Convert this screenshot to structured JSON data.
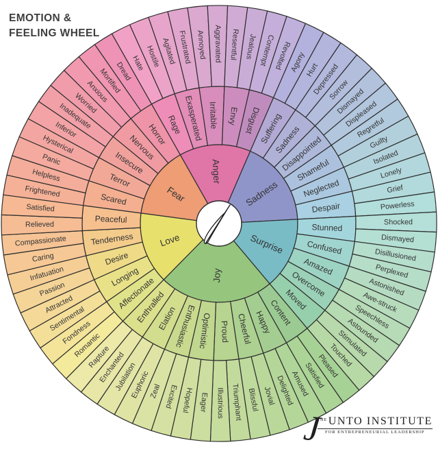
{
  "title": {
    "line1": "EMOTION &",
    "line2": "FEELING WHEEL"
  },
  "logo": {
    "the": "THE",
    "initial": "J",
    "name_rest": "UNTO INSTITUTE",
    "tagline": "FOR ENTREPRENEURIAL LEADERSHIP"
  },
  "center_icon": "quill-j-monogram",
  "colors": {
    "background": "#ffffff",
    "stroke": "#2e2e2e",
    "label": "#333333",
    "title_text": "#3e3e3e",
    "logo_text": "#1f1f1f",
    "center_fill": "#ffffff"
  },
  "wheel": {
    "start_angle_deg": -29.5,
    "segments": [
      {
        "label": "Anger",
        "color": "#e075a8",
        "middle": [
          {
            "label": "Rage",
            "color": "#ee8db7"
          },
          {
            "label": "Exasperated",
            "color": "#e38db9"
          },
          {
            "label": "Irritable",
            "color": "#d88dbc"
          },
          {
            "label": "Envy",
            "color": "#cc8dbe"
          },
          {
            "label": "Disgust",
            "color": "#c08cbe"
          }
        ],
        "outer": [
          {
            "label": "Hate",
            "color": "#f2a1c6"
          },
          {
            "label": "Hostile",
            "color": "#eca3c8"
          },
          {
            "label": "Agitated",
            "color": "#e7a5cb"
          },
          {
            "label": "Frustrated",
            "color": "#e1a6cd"
          },
          {
            "label": "Annoyed",
            "color": "#dba8d0"
          },
          {
            "label": "Aggravated",
            "color": "#d6aad2"
          },
          {
            "label": "Resentful",
            "color": "#d0acd5"
          },
          {
            "label": "Jealous",
            "color": "#caadd7"
          },
          {
            "label": "Contempt",
            "color": "#c5afda"
          },
          {
            "label": "Revolted",
            "color": "#bfb1dc"
          }
        ]
      },
      {
        "label": "Sadness",
        "color": "#9095c9",
        "middle": [
          {
            "label": "Suffering",
            "color": "#b2a9d4"
          },
          {
            "label": "Sadness",
            "color": "#b0b1d7"
          },
          {
            "label": "Disappointed",
            "color": "#aeb9da"
          },
          {
            "label": "Shameful",
            "color": "#acc1dd"
          },
          {
            "label": "Neglected",
            "color": "#abc8e0"
          },
          {
            "label": "Despair",
            "color": "#a9d0e3"
          }
        ],
        "outer": [
          {
            "label": "Agony",
            "color": "#b3b1dd"
          },
          {
            "label": "Hurt",
            "color": "#b3b5dd"
          },
          {
            "label": "Depressed",
            "color": "#b3b9dd"
          },
          {
            "label": "Sorrow",
            "color": "#b3bedd"
          },
          {
            "label": "Dismayed",
            "color": "#b2c2dd"
          },
          {
            "label": "Displeased",
            "color": "#b2c6dd"
          },
          {
            "label": "Regretful",
            "color": "#b2cadd"
          },
          {
            "label": "Guilty",
            "color": "#b2cfdc"
          },
          {
            "label": "Isolated",
            "color": "#b2d3dc"
          },
          {
            "label": "Lonely",
            "color": "#b2d7dc"
          },
          {
            "label": "Grief",
            "color": "#b2dadc"
          },
          {
            "label": "Powerless",
            "color": "#b2dedc"
          }
        ]
      },
      {
        "label": "Surprise",
        "color": "#79bcc6",
        "middle": [
          {
            "label": "Stunned",
            "color": "#a3d6dc"
          },
          {
            "label": "Confused",
            "color": "#a0d4cf"
          },
          {
            "label": "Amazed",
            "color": "#9dd3c3"
          },
          {
            "label": "Overcome",
            "color": "#9ad1b7"
          },
          {
            "label": "Moved",
            "color": "#96cfab"
          }
        ],
        "outer": [
          {
            "label": "Shocked",
            "color": "#b4e0d9"
          },
          {
            "label": "Dismayed",
            "color": "#b4dfd3"
          },
          {
            "label": "Disillusioned",
            "color": "#b5decd"
          },
          {
            "label": "Perplexed",
            "color": "#b5ddc8"
          },
          {
            "label": "Astonished",
            "color": "#b5dcc2"
          },
          {
            "label": "Awe-struck",
            "color": "#b6dcbc"
          },
          {
            "label": "Speechless",
            "color": "#b6dbb6"
          },
          {
            "label": "Astounded",
            "color": "#b6dab1"
          },
          {
            "label": "Stimulated",
            "color": "#b7d9ab"
          },
          {
            "label": "Touched",
            "color": "#b7d9a6"
          }
        ]
      },
      {
        "label": "Joy",
        "color": "#96c57e",
        "middle": [
          {
            "label": "Content",
            "color": "#9bcb92"
          },
          {
            "label": "Happy",
            "color": "#a4ce91"
          },
          {
            "label": "Cheerful",
            "color": "#add190"
          },
          {
            "label": "Proud",
            "color": "#b7d490"
          },
          {
            "label": "Optimistic",
            "color": "#c0d78f"
          },
          {
            "label": "Enthusiastic",
            "color": "#c9da8e"
          },
          {
            "label": "Elation",
            "color": "#d2dd8d"
          },
          {
            "label": "Enthralled",
            "color": "#dbe08c"
          }
        ],
        "outer": [
          {
            "label": "Pleased",
            "color": "#a6d295"
          },
          {
            "label": "Satisfied",
            "color": "#abd496"
          },
          {
            "label": "Amused",
            "color": "#afd598"
          },
          {
            "label": "Delighted",
            "color": "#b4d799"
          },
          {
            "label": "Jovial",
            "color": "#b9d89a"
          },
          {
            "label": "Blissful",
            "color": "#beda9c"
          },
          {
            "label": "Triumphant",
            "color": "#c2db9d"
          },
          {
            "label": "Illustrious",
            "color": "#c7dd9e"
          },
          {
            "label": "Eager",
            "color": "#ccdea0"
          },
          {
            "label": "Hopeful",
            "color": "#d1e0a1"
          },
          {
            "label": "Excited",
            "color": "#d5e1a2"
          },
          {
            "label": "Zeal",
            "color": "#dae3a4"
          },
          {
            "label": "Euphoric",
            "color": "#dfe4a5"
          },
          {
            "label": "Jubilation",
            "color": "#e3e6a6"
          },
          {
            "label": "Enchanted",
            "color": "#e8e7a8"
          },
          {
            "label": "Rapture",
            "color": "#ece9a9"
          }
        ]
      },
      {
        "label": "Love",
        "color": "#e8e06d",
        "middle": [
          {
            "label": "Affectionate",
            "color": "#dfe289"
          },
          {
            "label": "Longing",
            "color": "#e9e187"
          },
          {
            "label": "Desire",
            "color": "#efda87"
          },
          {
            "label": "Tenderness",
            "color": "#f3cb8b"
          },
          {
            "label": "Peaceful",
            "color": "#f6bf8e"
          }
        ],
        "outer": [
          {
            "label": "Romantic",
            "color": "#f3ea9b"
          },
          {
            "label": "Fondness",
            "color": "#f3e49a"
          },
          {
            "label": "Sentimental",
            "color": "#f4df99"
          },
          {
            "label": "Attracted",
            "color": "#f4d998"
          },
          {
            "label": "Passion",
            "color": "#f4d497"
          },
          {
            "label": "Infatuation",
            "color": "#f5ce96"
          },
          {
            "label": "Caring",
            "color": "#f5c895"
          },
          {
            "label": "Compassionate",
            "color": "#f5c394"
          },
          {
            "label": "Relieved",
            "color": "#f6bd94"
          },
          {
            "label": "Satisfied",
            "color": "#f6b993"
          }
        ]
      },
      {
        "label": "Fear",
        "color": "#ee9d75",
        "middle": [
          {
            "label": "Scared",
            "color": "#f4af90"
          },
          {
            "label": "Terror",
            "color": "#f2a896"
          },
          {
            "label": "Insecure",
            "color": "#f1a19c"
          },
          {
            "label": "Nervous",
            "color": "#f09aa2"
          },
          {
            "label": "Horror",
            "color": "#ee93a8"
          }
        ],
        "outer": [
          {
            "label": "Frightened",
            "color": "#f5b197"
          },
          {
            "label": "Helpless",
            "color": "#f4ad9a"
          },
          {
            "label": "Panic",
            "color": "#f4aa9e"
          },
          {
            "label": "Hysterical",
            "color": "#f3a6a1"
          },
          {
            "label": "Inferior",
            "color": "#f3a3a5"
          },
          {
            "label": "Inadequate",
            "color": "#f2a0a8"
          },
          {
            "label": "Worried",
            "color": "#f19cab"
          },
          {
            "label": "Anxious",
            "color": "#f199af"
          },
          {
            "label": "Mortified",
            "color": "#f096b2"
          },
          {
            "label": "Dread",
            "color": "#ee93b6"
          }
        ]
      }
    ]
  }
}
